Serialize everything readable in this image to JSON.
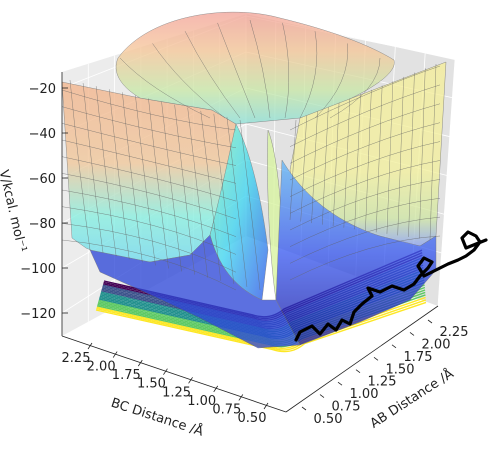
{
  "chart_data": {
    "type": "surface3d",
    "title": "",
    "zlabel": "V/kcal. mol⁻¹",
    "xlabel": "AB Distance /Å",
    "ylabel": "BC Distance /Å",
    "z_ticks": [
      "−20",
      "−40",
      "−60",
      "−80",
      "−100",
      "−120"
    ],
    "z_tick_values": [
      -20,
      -40,
      -60,
      -80,
      -100,
      -120
    ],
    "x_ticks": [
      "0.50",
      "0.75",
      "1.00",
      "1.25",
      "1.50",
      "1.75",
      "2.00",
      "2.25"
    ],
    "y_ticks": [
      "2.25",
      "2.00",
      "1.75",
      "1.50",
      "1.25",
      "1.00",
      "0.75",
      "0.50"
    ],
    "zlim": [
      -135,
      -15
    ],
    "xlim": [
      0.5,
      2.4
    ],
    "ylim": [
      0.5,
      2.4
    ],
    "colormap_surface": "jet",
    "colormap_contour": "viridis",
    "trajectory_color": "#000000",
    "grid": true,
    "legend": "none"
  }
}
